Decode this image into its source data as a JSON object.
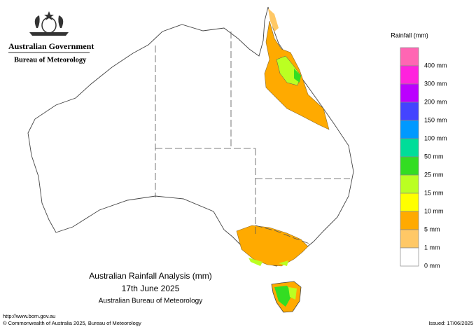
{
  "header": {
    "government": "Australian Government",
    "agency": "Bureau of Meteorology"
  },
  "title": {
    "line1": "Australian Rainfall Analysis (mm)",
    "line2": "17th June 2025",
    "line3": "Australian Bureau of Meteorology"
  },
  "legend": {
    "title": "Rainfall (mm)",
    "items": [
      {
        "label": "400 mm",
        "color": "#ff66b3"
      },
      {
        "label": "300 mm",
        "color": "#ff22dd"
      },
      {
        "label": "200 mm",
        "color": "#bb00ff"
      },
      {
        "label": "150 mm",
        "color": "#4444ff"
      },
      {
        "label": "100 mm",
        "color": "#0099ff"
      },
      {
        "label": "50 mm",
        "color": "#00dd99"
      },
      {
        "label": "25 mm",
        "color": "#33dd22"
      },
      {
        "label": "15 mm",
        "color": "#bbff22"
      },
      {
        "label": "10 mm",
        "color": "#ffff00"
      },
      {
        "label": "5 mm",
        "color": "#ffaa00"
      },
      {
        "label": "1 mm",
        "color": "#ffc866"
      },
      {
        "label": "0 mm",
        "color": "#ffffff"
      }
    ]
  },
  "footer": {
    "url": "http://www.bom.gov.au",
    "copyright": "© Commonwealth of Australia 2025, Bureau of Meteorology",
    "issued": "Issued: 17/06/2025"
  }
}
